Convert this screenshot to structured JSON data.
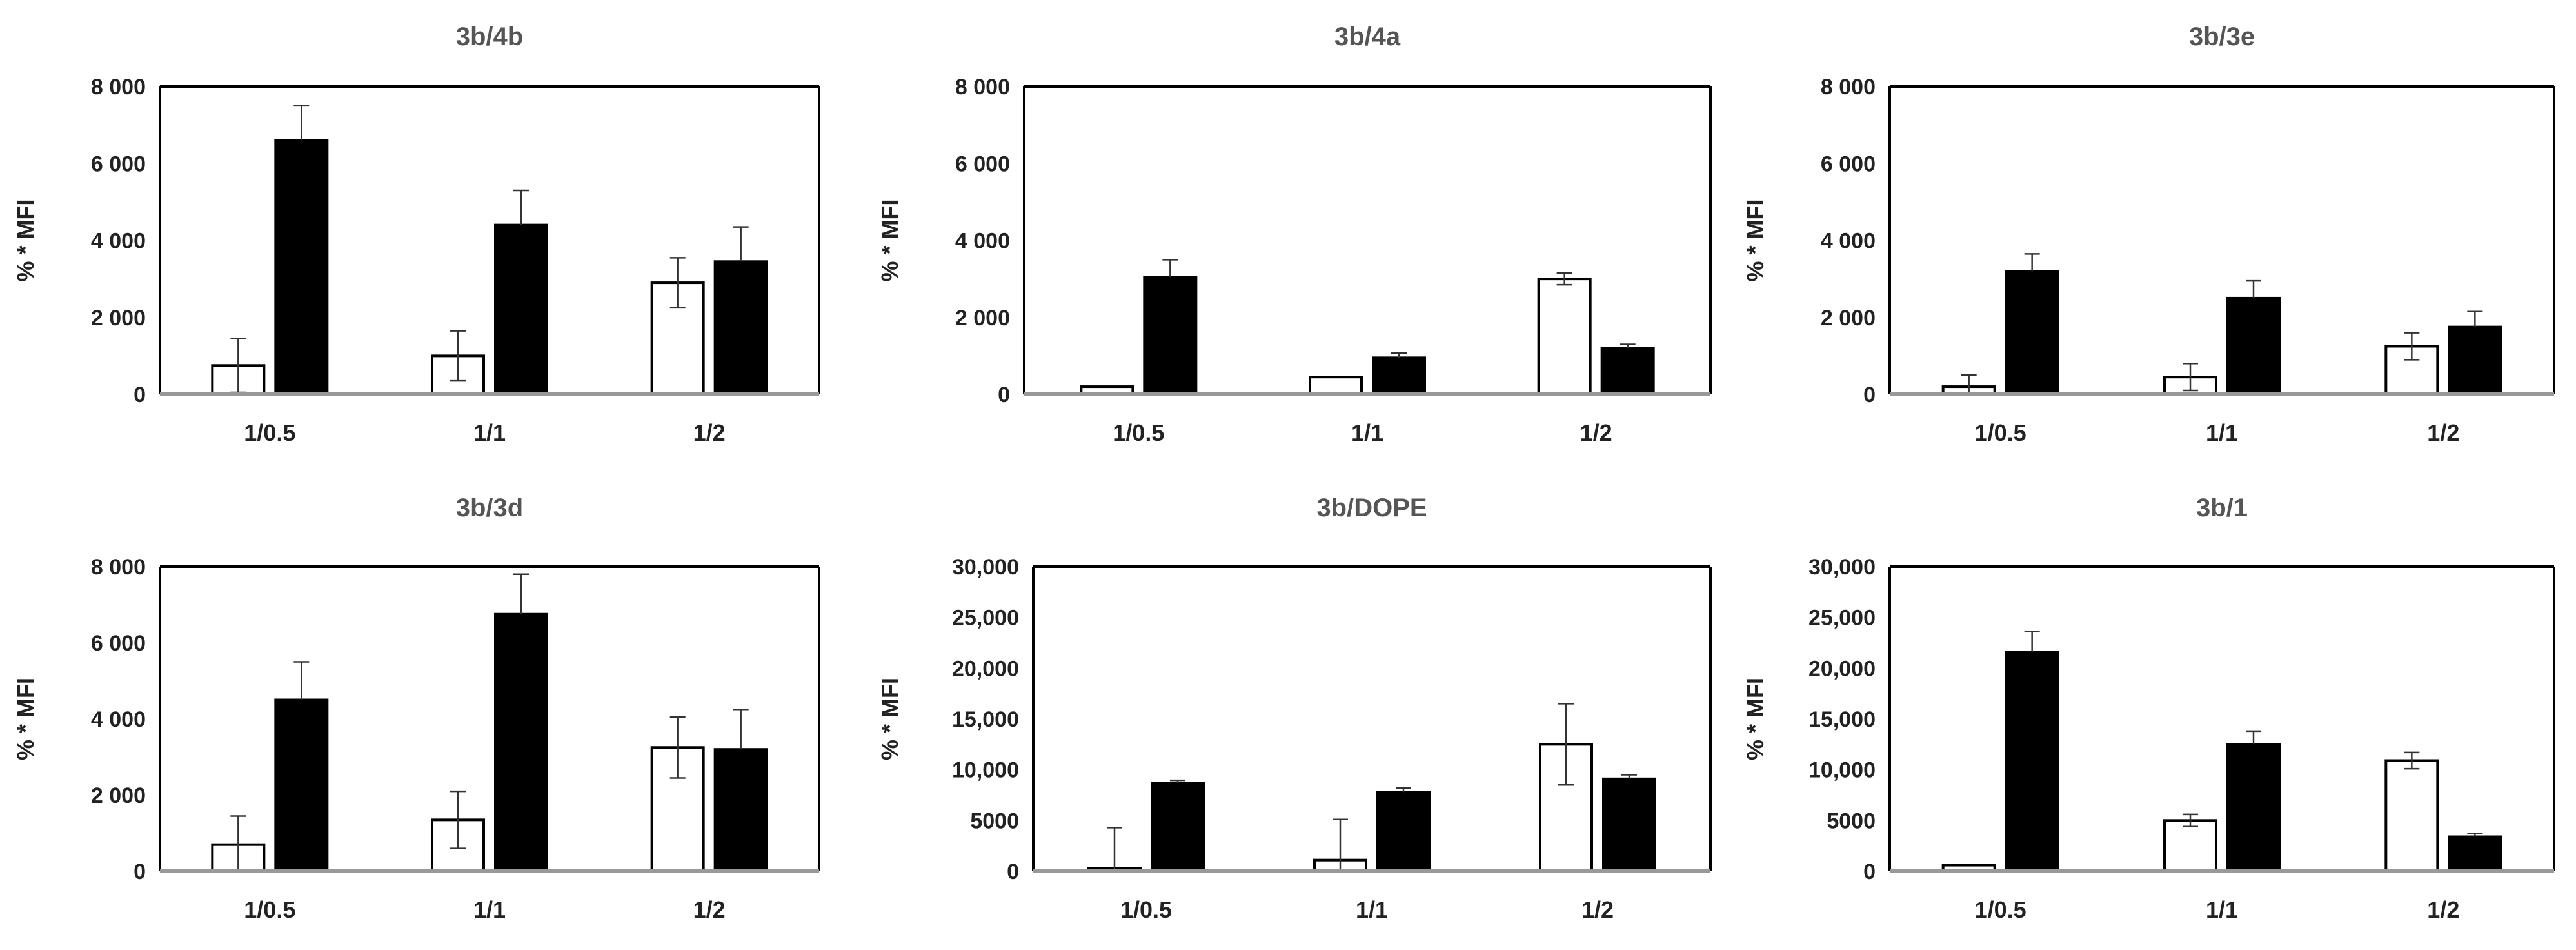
{
  "colors": {
    "series_open": "#ffffff",
    "series_filled": "#000000",
    "axis": "#000000",
    "baseline": "#999999"
  },
  "chart_data": [
    {
      "type": "bar",
      "title": "3b/4b",
      "ylabel": "% * MFI",
      "categories": [
        "1/0.5",
        "1/1",
        "1/2"
      ],
      "ylim": [
        0,
        8000
      ],
      "yticks": [
        0,
        2000,
        4000,
        6000,
        8000
      ],
      "ytick_labels": [
        "0",
        "2 000",
        "4 000",
        "6 000",
        "8 000"
      ],
      "series": [
        {
          "name": "open",
          "values": [
            750,
            1000,
            2900
          ],
          "errors": [
            700,
            650,
            650
          ]
        },
        {
          "name": "filled",
          "values": [
            6600,
            4400,
            3450
          ],
          "errors": [
            900,
            900,
            900
          ]
        }
      ]
    },
    {
      "type": "bar",
      "title": "3b/4a",
      "ylabel": "% * MFI",
      "categories": [
        "1/0.5",
        "1/1",
        "1/2"
      ],
      "ylim": [
        0,
        8000
      ],
      "yticks": [
        0,
        2000,
        4000,
        6000,
        8000
      ],
      "ytick_labels": [
        "0",
        "2 000",
        "4 000",
        "6 000",
        "8 000"
      ],
      "series": [
        {
          "name": "open",
          "values": [
            200,
            450,
            3000
          ],
          "errors": [
            0,
            0,
            150
          ]
        },
        {
          "name": "filled",
          "values": [
            3050,
            950,
            1200
          ],
          "errors": [
            450,
            120,
            100
          ]
        }
      ]
    },
    {
      "type": "bar",
      "title": "3b/3e",
      "ylabel": "% * MFI",
      "categories": [
        "1/0.5",
        "1/1",
        "1/2"
      ],
      "ylim": [
        0,
        8000
      ],
      "yticks": [
        0,
        2000,
        4000,
        6000,
        8000
      ],
      "ytick_labels": [
        "0",
        "2 000",
        "4 000",
        "6 000",
        "8 000"
      ],
      "series": [
        {
          "name": "open",
          "values": [
            200,
            450,
            1250
          ],
          "errors": [
            300,
            350,
            350
          ]
        },
        {
          "name": "filled",
          "values": [
            3200,
            2500,
            1750
          ],
          "errors": [
            450,
            450,
            400
          ]
        }
      ]
    },
    {
      "type": "bar",
      "title": "3b/3d",
      "ylabel": "% * MFI",
      "categories": [
        "1/0.5",
        "1/1",
        "1/2"
      ],
      "ylim": [
        0,
        8000
      ],
      "yticks": [
        0,
        2000,
        4000,
        6000,
        8000
      ],
      "ytick_labels": [
        "0",
        "2 000",
        "4 000",
        "6 000",
        "8 000"
      ],
      "series": [
        {
          "name": "open",
          "values": [
            700,
            1350,
            3250
          ],
          "errors": [
            750,
            750,
            800
          ]
        },
        {
          "name": "filled",
          "values": [
            4500,
            6750,
            3200
          ],
          "errors": [
            1000,
            1050,
            1050
          ]
        }
      ]
    },
    {
      "type": "bar",
      "title": "3b/DOPE",
      "ylabel": "% * MFI",
      "categories": [
        "1/0.5",
        "1/1",
        "1/2"
      ],
      "ylim": [
        0,
        30000
      ],
      "yticks": [
        0,
        5000,
        10000,
        15000,
        20000,
        25000,
        30000
      ],
      "ytick_labels": [
        "0",
        "5000",
        "10,000",
        "15,000",
        "20,000",
        "25,000",
        "30,000"
      ],
      "series": [
        {
          "name": "open",
          "values": [
            300,
            1100,
            12500
          ],
          "errors": [
            4000,
            4000,
            4000
          ]
        },
        {
          "name": "filled",
          "values": [
            8700,
            7800,
            9100
          ],
          "errors": [
            250,
            400,
            400
          ]
        }
      ]
    },
    {
      "type": "bar",
      "title": "3b/1",
      "ylabel": "% * MFI",
      "categories": [
        "1/0.5",
        "1/1",
        "1/2"
      ],
      "ylim": [
        0,
        30000
      ],
      "yticks": [
        0,
        5000,
        10000,
        15000,
        20000,
        25000,
        30000
      ],
      "ytick_labels": [
        "0",
        "5000",
        "10,000",
        "15,000",
        "20,000",
        "25,000",
        "30,000"
      ],
      "series": [
        {
          "name": "open",
          "values": [
            600,
            5000,
            10900
          ],
          "errors": [
            0,
            600,
            800
          ]
        },
        {
          "name": "filled",
          "values": [
            21600,
            12500,
            3400
          ],
          "errors": [
            2000,
            1300,
            300
          ]
        }
      ]
    }
  ]
}
